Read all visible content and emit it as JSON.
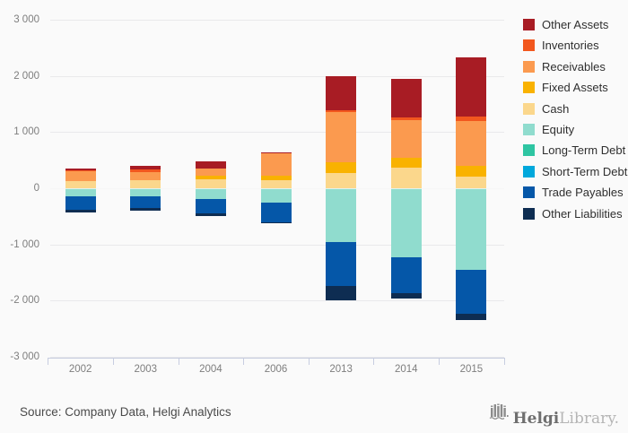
{
  "chart_data": {
    "type": "bar",
    "stacked": true,
    "title": "",
    "categories": [
      "2002",
      "2003",
      "2004",
      "2006",
      "2013",
      "2014",
      "2015"
    ],
    "ylim": [
      -3000,
      3000
    ],
    "ytick_interval": 1000,
    "ytick_labels": [
      "3 000",
      "2 000",
      "1 000",
      "0",
      "-1 000",
      "-2 000",
      "-3 000"
    ],
    "grid": true,
    "legend_position": "right",
    "series": [
      {
        "name": "Other Assets",
        "color": "#A81C24",
        "sign": "positive",
        "values": [
          35,
          60,
          130,
          25,
          600,
          690,
          1050
        ]
      },
      {
        "name": "Inventories",
        "color": "#F2571E",
        "sign": "positive",
        "values": [
          15,
          60,
          0,
          0,
          40,
          50,
          80
        ]
      },
      {
        "name": "Receivables",
        "color": "#FB9A4F",
        "sign": "positive",
        "values": [
          180,
          140,
          135,
          390,
          900,
          670,
          800
        ]
      },
      {
        "name": "Fixed Assets",
        "color": "#F9B200",
        "sign": "positive",
        "values": [
          0,
          0,
          65,
          80,
          185,
          180,
          200
        ]
      },
      {
        "name": "Cash",
        "color": "#FBD78C",
        "sign": "positive",
        "values": [
          120,
          140,
          155,
          150,
          270,
          360,
          200
        ]
      },
      {
        "name": "Equity",
        "color": "#90DCCE",
        "sign": "negative",
        "values": [
          140,
          145,
          185,
          260,
          960,
          1230,
          1450
        ]
      },
      {
        "name": "Long-Term Debt",
        "color": "#2EC5A2",
        "sign": "negative",
        "values": [
          0,
          0,
          0,
          0,
          0,
          0,
          0
        ]
      },
      {
        "name": "Short-Term Debt",
        "color": "#00A8DC",
        "sign": "negative",
        "values": [
          0,
          0,
          0,
          0,
          0,
          0,
          0
        ]
      },
      {
        "name": "Trade Payables",
        "color": "#0557A8",
        "sign": "negative",
        "values": [
          240,
          210,
          265,
          345,
          780,
          640,
          780
        ]
      },
      {
        "name": "Other Liabilities",
        "color": "#0E2D52",
        "sign": "negative",
        "values": [
          50,
          50,
          45,
          25,
          250,
          90,
          120
        ]
      }
    ]
  },
  "footer": {
    "source_text": "Source: Company Data, Helgi Analytics"
  },
  "logo": {
    "brand_bold": "Helgi",
    "brand_light": "Library."
  },
  "colors": {
    "background": "#FAFAFA",
    "gridline": "#E9E9EB",
    "axis": "#C7CDE0",
    "tick_label": "#7E7E7E",
    "legend_text": "#2F2F2F",
    "source_text": "#4A4A4A"
  }
}
